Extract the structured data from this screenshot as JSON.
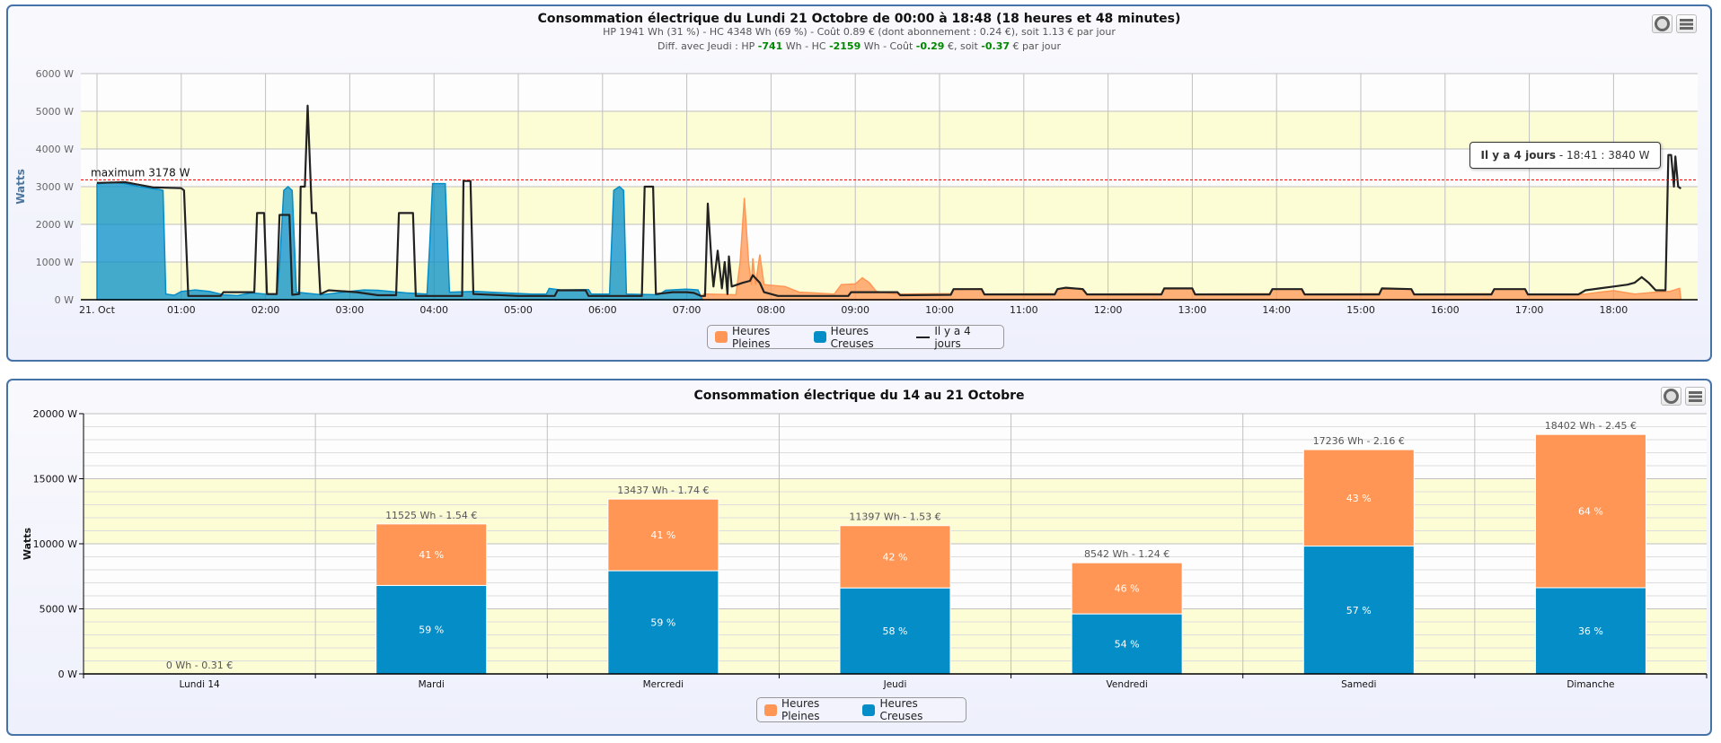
{
  "top": {
    "title": "Consommation électrique du Lundi 21 Octobre de 00:00 à 18:48 (18 heures et 48 minutes)",
    "summary_line": "HP 1941 Wh (31 %) - HC 4348 Wh (69 %) - Coût 0.89 € (dont abonnement : 0.24 €), soit 1.13 € par jour",
    "diff_line": [
      {
        "text": "Diff. avec Jeudi : HP ",
        "highlight": false
      },
      {
        "text": "-741",
        "highlight": true
      },
      {
        "text": " Wh - HC ",
        "highlight": false
      },
      {
        "text": "-2159",
        "highlight": true
      },
      {
        "text": " Wh - Coût ",
        "highlight": false
      },
      {
        "text": "-0.29",
        "highlight": true
      },
      {
        "text": " €, soit ",
        "highlight": false
      },
      {
        "text": "-0.37",
        "highlight": true
      },
      {
        "text": " € par jour",
        "highlight": false
      }
    ],
    "tooltip": {
      "series": "Il y a 4 jours",
      "rest": " - 18:41 : 3840 W"
    },
    "buttons": {
      "print_icon": "circle-icon",
      "menu_icon": "hamburger-icon"
    }
  },
  "bottom": {
    "buttons": {
      "print_icon": "circle-icon",
      "menu_icon": "hamburger-icon"
    }
  },
  "colors": {
    "hp": "#ff9655",
    "hc": "#058dc7",
    "previous": "#222222",
    "max_line": "#ff0000",
    "band": "#fdfdd5",
    "positive_diff": "#008800"
  },
  "chart_data": [
    {
      "type": "area",
      "title": "Consommation électrique du Lundi 21 Octobre de 00:00 à 18:48 (18 heures et 48 minutes)",
      "ylabel": "Watts",
      "ylim": [
        0,
        6000
      ],
      "yticks": [
        "0 W",
        "1000 W",
        "2000 W",
        "3000 W",
        "4000 W",
        "5000 W",
        "6000 W"
      ],
      "xticks": [
        "21. Oct",
        "01:00",
        "02:00",
        "03:00",
        "04:00",
        "05:00",
        "06:00",
        "07:00",
        "08:00",
        "09:00",
        "10:00",
        "11:00",
        "12:00",
        "13:00",
        "14:00",
        "15:00",
        "16:00",
        "17:00",
        "18:00"
      ],
      "grid": true,
      "legend": "bottom-center",
      "plot_line": {
        "label": "maximum 3178 W",
        "value": 3178
      },
      "series": [
        {
          "name": "Heures Pleines",
          "type": "area",
          "points": [
            [
              "07:11",
              0
            ],
            [
              "07:12",
              150
            ],
            [
              "07:35",
              130
            ],
            [
              "07:38",
              1000
            ],
            [
              "07:41",
              2700
            ],
            [
              "07:44",
              1000
            ],
            [
              "07:46",
              400
            ],
            [
              "07:47",
              1100
            ],
            [
              "07:49",
              400
            ],
            [
              "07:52",
              1200
            ],
            [
              "07:55",
              400
            ],
            [
              "08:10",
              350
            ],
            [
              "08:20",
              200
            ],
            [
              "08:30",
              180
            ],
            [
              "08:45",
              150
            ],
            [
              "08:50",
              400
            ],
            [
              "09:00",
              420
            ],
            [
              "09:05",
              580
            ],
            [
              "09:10",
              450
            ],
            [
              "09:15",
              220
            ],
            [
              "09:30",
              150
            ],
            [
              "10:08",
              160
            ],
            [
              "10:10",
              270
            ],
            [
              "10:30",
              290
            ],
            [
              "10:32",
              150
            ],
            [
              "11:22",
              160
            ],
            [
              "11:24",
              280
            ],
            [
              "11:40",
              300
            ],
            [
              "11:45",
              150
            ],
            [
              "12:38",
              160
            ],
            [
              "12:40",
              280
            ],
            [
              "13:00",
              300
            ],
            [
              "13:02",
              150
            ],
            [
              "13:55",
              160
            ],
            [
              "13:57",
              280
            ],
            [
              "14:18",
              280
            ],
            [
              "14:20",
              150
            ],
            [
              "15:13",
              160
            ],
            [
              "15:15",
              280
            ],
            [
              "15:36",
              280
            ],
            [
              "15:38",
              150
            ],
            [
              "16:33",
              160
            ],
            [
              "16:35",
              280
            ],
            [
              "16:57",
              280
            ],
            [
              "16:59",
              150
            ],
            [
              "17:30",
              130
            ],
            [
              "17:40",
              150
            ],
            [
              "17:50",
              200
            ],
            [
              "18:00",
              240
            ],
            [
              "18:15",
              150
            ],
            [
              "18:30",
              200
            ],
            [
              "18:40",
              220
            ],
            [
              "18:47",
              300
            ],
            [
              "18:48",
              0
            ]
          ]
        },
        {
          "name": "Heures Creuses",
          "type": "area",
          "points": [
            [
              "00:00",
              3070
            ],
            [
              "00:10",
              3120
            ],
            [
              "00:20",
              3080
            ],
            [
              "00:30",
              3000
            ],
            [
              "00:45",
              2920
            ],
            [
              "00:47",
              2900
            ],
            [
              "00:49",
              150
            ],
            [
              "00:55",
              120
            ],
            [
              "01:00",
              220
            ],
            [
              "01:10",
              260
            ],
            [
              "01:20",
              220
            ],
            [
              "01:30",
              130
            ],
            [
              "01:40",
              110
            ],
            [
              "01:50",
              180
            ],
            [
              "02:00",
              150
            ],
            [
              "02:08",
              140
            ],
            [
              "02:10",
              900
            ],
            [
              "02:13",
              2900
            ],
            [
              "02:16",
              3000
            ],
            [
              "02:19",
              2900
            ],
            [
              "02:22",
              200
            ],
            [
              "02:40",
              130
            ],
            [
              "03:00",
              220
            ],
            [
              "03:10",
              260
            ],
            [
              "03:20",
              250
            ],
            [
              "03:40",
              180
            ],
            [
              "03:55",
              150
            ],
            [
              "03:57",
              1500
            ],
            [
              "03:59",
              3080
            ],
            [
              "04:08",
              3080
            ],
            [
              "04:11",
              200
            ],
            [
              "04:30",
              220
            ],
            [
              "04:50",
              180
            ],
            [
              "05:10",
              150
            ],
            [
              "05:20",
              150
            ],
            [
              "05:22",
              300
            ],
            [
              "05:30",
              260
            ],
            [
              "05:50",
              270
            ],
            [
              "05:52",
              150
            ],
            [
              "06:05",
              150
            ],
            [
              "06:08",
              2900
            ],
            [
              "06:12",
              3000
            ],
            [
              "06:15",
              2900
            ],
            [
              "06:17",
              150
            ],
            [
              "06:40",
              130
            ],
            [
              "06:45",
              250
            ],
            [
              "07:00",
              280
            ],
            [
              "07:08",
              260
            ],
            [
              "07:11",
              0
            ]
          ]
        },
        {
          "name": "Il y a 4 jours",
          "type": "line",
          "points": [
            [
              "00:00",
              3100
            ],
            [
              "00:20",
              3120
            ],
            [
              "00:30",
              3050
            ],
            [
              "00:40",
              2980
            ],
            [
              "01:00",
              2960
            ],
            [
              "01:02",
              2900
            ],
            [
              "01:05",
              100
            ],
            [
              "01:28",
              100
            ],
            [
              "01:30",
              200
            ],
            [
              "01:52",
              200
            ],
            [
              "01:54",
              2300
            ],
            [
              "01:59",
              2300
            ],
            [
              "02:01",
              150
            ],
            [
              "02:08",
              150
            ],
            [
              "02:10",
              2250
            ],
            [
              "02:17",
              2250
            ],
            [
              "02:19",
              130
            ],
            [
              "02:24",
              150
            ],
            [
              "02:25",
              3000
            ],
            [
              "02:28",
              3000
            ],
            [
              "02:30",
              5150
            ],
            [
              "02:33",
              2300
            ],
            [
              "02:36",
              2300
            ],
            [
              "02:39",
              150
            ],
            [
              "02:45",
              250
            ],
            [
              "03:05",
              200
            ],
            [
              "03:20",
              120
            ],
            [
              "03:33",
              120
            ],
            [
              "03:35",
              2300
            ],
            [
              "03:45",
              2300
            ],
            [
              "03:47",
              100
            ],
            [
              "04:20",
              100
            ],
            [
              "04:21",
              3150
            ],
            [
              "04:26",
              3150
            ],
            [
              "04:28",
              150
            ],
            [
              "05:00",
              100
            ],
            [
              "05:26",
              100
            ],
            [
              "05:28",
              250
            ],
            [
              "05:48",
              250
            ],
            [
              "05:50",
              100
            ],
            [
              "06:28",
              100
            ],
            [
              "06:30",
              3000
            ],
            [
              "06:36",
              3000
            ],
            [
              "06:38",
              150
            ],
            [
              "06:50",
              200
            ],
            [
              "07:00",
              200
            ],
            [
              "07:05",
              180
            ],
            [
              "07:10",
              100
            ],
            [
              "07:13",
              100
            ],
            [
              "07:15",
              2550
            ],
            [
              "07:18",
              800
            ],
            [
              "07:19",
              350
            ],
            [
              "07:22",
              1300
            ],
            [
              "07:25",
              300
            ],
            [
              "07:27",
              1000
            ],
            [
              "07:29",
              150
            ],
            [
              "07:30",
              1150
            ],
            [
              "07:32",
              350
            ],
            [
              "07:40",
              450
            ],
            [
              "07:45",
              500
            ],
            [
              "07:47",
              650
            ],
            [
              "07:52",
              450
            ],
            [
              "07:55",
              200
            ],
            [
              "08:05",
              100
            ],
            [
              "08:55",
              100
            ],
            [
              "08:57",
              200
            ],
            [
              "09:30",
              200
            ],
            [
              "09:32",
              120
            ],
            [
              "10:08",
              130
            ],
            [
              "10:10",
              280
            ],
            [
              "10:30",
              280
            ],
            [
              "10:32",
              140
            ],
            [
              "11:22",
              140
            ],
            [
              "11:24",
              280
            ],
            [
              "11:30",
              320
            ],
            [
              "11:42",
              280
            ],
            [
              "11:45",
              140
            ],
            [
              "12:38",
              140
            ],
            [
              "12:40",
              300
            ],
            [
              "13:00",
              300
            ],
            [
              "13:02",
              140
            ],
            [
              "13:55",
              140
            ],
            [
              "13:57",
              280
            ],
            [
              "14:18",
              280
            ],
            [
              "14:20",
              140
            ],
            [
              "15:13",
              140
            ],
            [
              "15:15",
              300
            ],
            [
              "15:36",
              280
            ],
            [
              "15:38",
              140
            ],
            [
              "16:33",
              140
            ],
            [
              "16:35",
              280
            ],
            [
              "16:57",
              280
            ],
            [
              "16:59",
              140
            ],
            [
              "17:35",
              140
            ],
            [
              "17:40",
              250
            ],
            [
              "17:50",
              300
            ],
            [
              "18:00",
              350
            ],
            [
              "18:10",
              400
            ],
            [
              "18:15",
              450
            ],
            [
              "18:20",
              600
            ],
            [
              "18:25",
              450
            ],
            [
              "18:30",
              250
            ],
            [
              "18:37",
              250
            ],
            [
              "18:39",
              3840
            ],
            [
              "18:41",
              3840
            ],
            [
              "18:43",
              3000
            ],
            [
              "18:44",
              3800
            ],
            [
              "18:46",
              3000
            ],
            [
              "18:48",
              2950
            ]
          ]
        }
      ]
    },
    {
      "type": "bar",
      "stacked": true,
      "title": "Consommation électrique du 14 au 21 Octobre",
      "ylabel": "Watts",
      "ylim": [
        0,
        20000
      ],
      "yticks": [
        "0 W",
        "5000 W",
        "10000 W",
        "15000 W",
        "20000 W"
      ],
      "grid": true,
      "legend": "bottom-center",
      "categories": [
        "Lundi 14",
        "Mardi",
        "Mercredi",
        "Jeudi",
        "Vendredi",
        "Samedi",
        "Dimanche"
      ],
      "totals": [
        "0 Wh - 0.31 €",
        "11525 Wh - 1.54 €",
        "13437 Wh - 1.74 €",
        "11397 Wh - 1.53 €",
        "8542 Wh - 1.24 €",
        "17236 Wh - 2.16 €",
        "18402 Wh - 2.45 €"
      ],
      "series": [
        {
          "name": "Heures Pleines",
          "values": [
            0,
            4725,
            5509,
            4787,
            3929,
            7411,
            11777
          ],
          "labels": [
            "",
            "41 %",
            "41 %",
            "42 %",
            "46 %",
            "43 %",
            "64 %"
          ]
        },
        {
          "name": "Heures Creuses",
          "values": [
            0,
            6800,
            7928,
            6610,
            4613,
            9825,
            6625
          ],
          "labels": [
            "",
            "59 %",
            "59 %",
            "58 %",
            "54 %",
            "57 %",
            "36 %"
          ]
        }
      ]
    }
  ]
}
